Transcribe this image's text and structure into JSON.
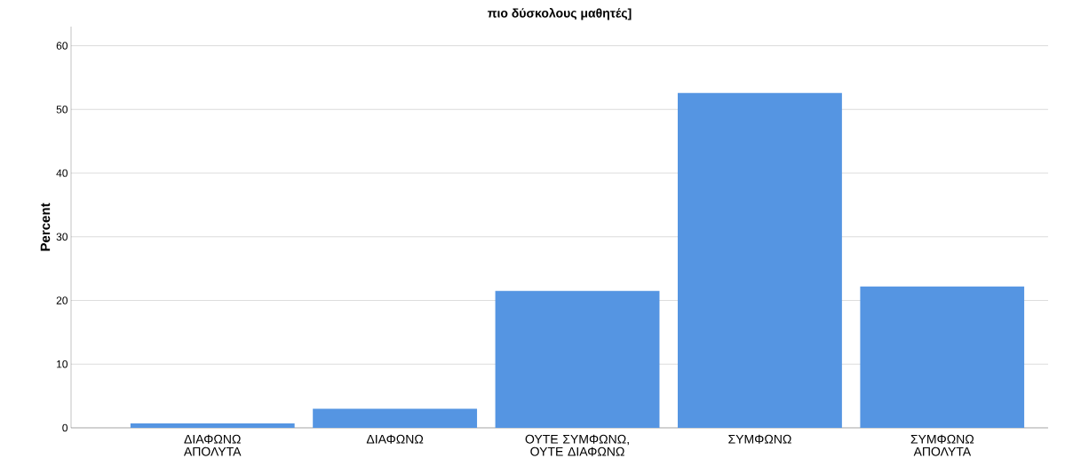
{
  "chart_data": {
    "type": "bar",
    "title": "πιο δύσκολους μαθητές]",
    "ylabel": "Percent",
    "categories": [
      "ΔΙΑΦΩΝΩ ΑΠΟΛΥΤΑ",
      "ΔΙΑΦΩΝΩ",
      "ΟΥΤΕ ΣΥΜΦΩΝΩ, ΟΥΤΕ ΔΙΑΦΩΝΩ",
      "ΣΥΜΦΩΝΩ",
      "ΣΥΜΦΩΝΩ ΑΠΟΛΥΤΑ"
    ],
    "values": [
      0.7,
      3.0,
      21.5,
      52.6,
      22.2
    ],
    "color": "#5595e2",
    "ylim": [
      0,
      63
    ],
    "yticks": [
      0,
      10,
      20,
      30,
      40,
      50,
      60
    ],
    "grid": "y"
  }
}
